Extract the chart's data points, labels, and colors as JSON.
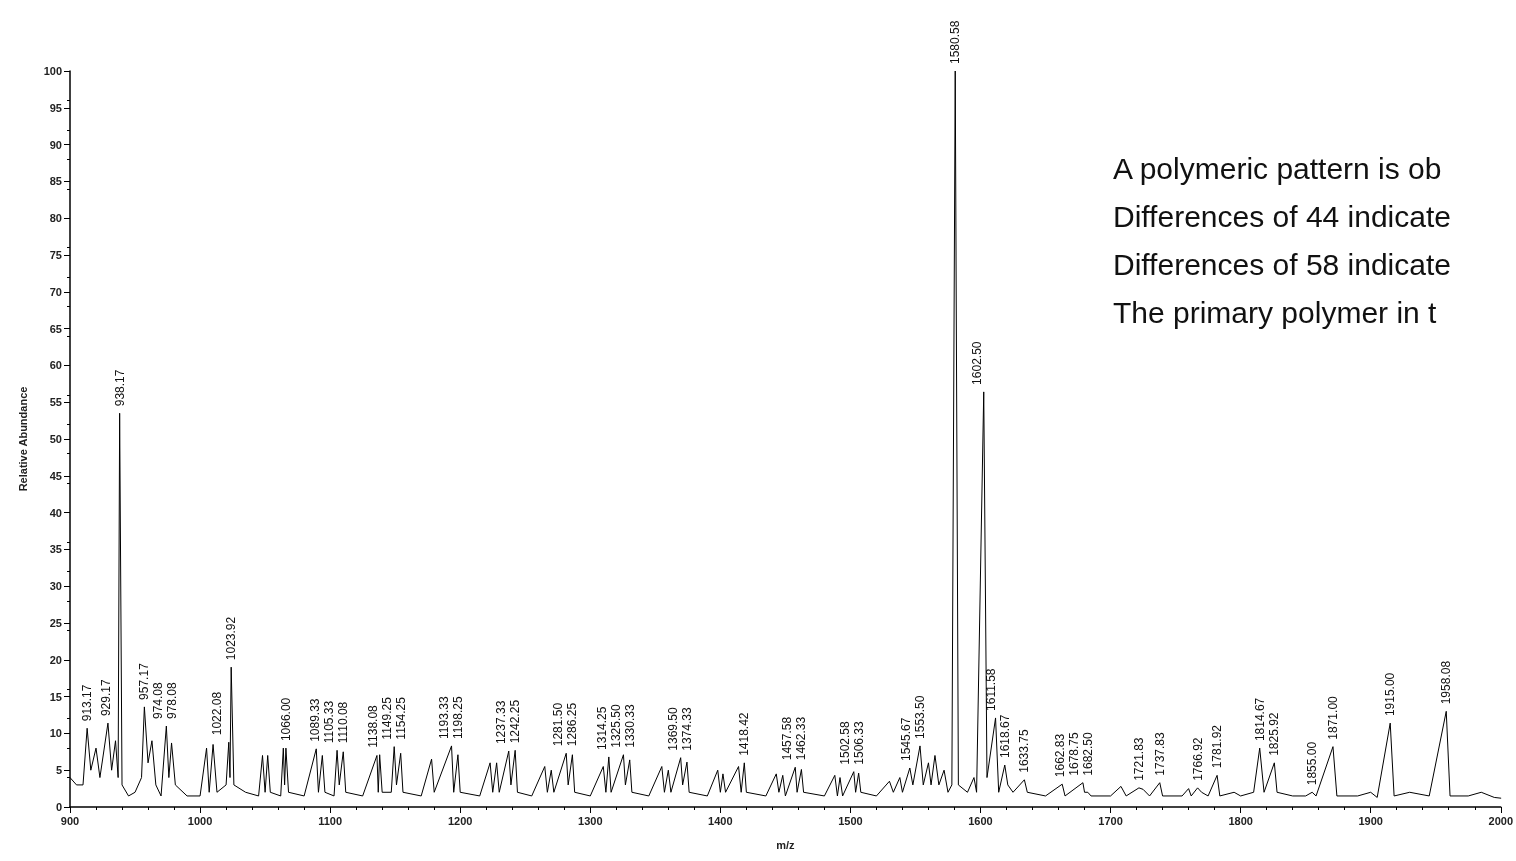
{
  "chart_data": {
    "type": "line",
    "xlabel": "m/z",
    "ylabel": "Relative Abundance",
    "xlim": [
      900,
      2000
    ],
    "xticks": [
      900,
      1000,
      1100,
      1200,
      1300,
      1400,
      1500,
      1600,
      1700,
      1800,
      1900,
      2000
    ],
    "ylim": [
      0,
      100
    ],
    "yticks": [
      0,
      5,
      10,
      15,
      20,
      25,
      30,
      35,
      40,
      45,
      50,
      55,
      60,
      65,
      70,
      75,
      80,
      85,
      90,
      95,
      100
    ],
    "grid": false,
    "marker": "none",
    "line_style": "solid",
    "series": [
      {
        "color": "#000000",
        "x": [
          900,
          905,
          910,
          913.17,
          916,
          920,
          923,
          929.17,
          932,
          935,
          937,
          938.17,
          940,
          945,
          950,
          955,
          957.17,
          960,
          963,
          966,
          970,
          974.08,
          976,
          978.08,
          981,
          990,
          1000,
          1005,
          1007,
          1010,
          1013,
          1020,
          1022.08,
          1023,
          1023.92,
          1026,
          1035,
          1045,
          1048,
          1050,
          1052,
          1054,
          1062,
          1064,
          1065,
          1066.0,
          1068,
          1080,
          1089.33,
          1091,
          1094,
          1096,
          1103,
          1105.33,
          1107,
          1110.08,
          1112,
          1125,
          1136,
          1137,
          1138.08,
          1140,
          1147,
          1149.25,
          1151,
          1154.25,
          1156,
          1170,
          1178,
          1180,
          1193.33,
          1195,
          1198.25,
          1200,
          1215,
          1223,
          1225,
          1228,
          1230,
          1237.33,
          1239,
          1242.25,
          1244,
          1255,
          1265,
          1267,
          1270,
          1272,
          1281.5,
          1283,
          1286.25,
          1288,
          1300,
          1310,
          1312,
          1314.25,
          1316,
          1325.5,
          1327,
          1330.33,
          1332,
          1345,
          1355,
          1357,
          1360,
          1362,
          1369.5,
          1371,
          1374.33,
          1376,
          1390,
          1398,
          1400,
          1402,
          1404,
          1414,
          1416,
          1418.42,
          1420,
          1435,
          1443,
          1445,
          1448,
          1450,
          1457.58,
          1459,
          1462.33,
          1464,
          1480,
          1488,
          1490,
          1492,
          1494,
          1502.58,
          1504,
          1506.33,
          1508,
          1520,
          1530,
          1533,
          1538,
          1540,
          1545.67,
          1548,
          1553.5,
          1556,
          1560,
          1562,
          1565,
          1568,
          1572,
          1575,
          1578,
          1580.58,
          1583,
          1590,
          1595,
          1597,
          1602.5,
          1605,
          1611.58,
          1614,
          1618.67,
          1621,
          1625,
          1633.75,
          1636,
          1650,
          1662.83,
          1665,
          1678.75,
          1680,
          1682.5,
          1685,
          1700,
          1708,
          1712,
          1721.83,
          1725,
          1730,
          1737.83,
          1740,
          1755,
          1760,
          1762,
          1766.92,
          1770,
          1775,
          1781.92,
          1784,
          1795,
          1800,
          1810,
          1814.67,
          1818,
          1825.92,
          1828,
          1840,
          1850,
          1855.0,
          1858,
          1871.0,
          1874,
          1890,
          1900,
          1905,
          1915.0,
          1918,
          1930,
          1945,
          1958.08,
          1961,
          1975,
          1985,
          1995,
          2000
        ],
        "values": [
          4,
          3,
          3,
          10.7,
          5,
          8,
          4,
          11.4,
          5,
          9,
          4,
          53.5,
          3,
          1.5,
          2,
          4,
          13.6,
          6,
          9,
          3,
          1.5,
          11.0,
          4,
          8.7,
          3,
          1.5,
          1.5,
          8,
          2,
          8.5,
          2,
          3,
          8.8,
          4,
          19.0,
          3,
          2,
          1.5,
          7,
          2,
          7,
          2,
          1.5,
          8,
          3,
          8.0,
          2,
          1.5,
          7.9,
          2,
          7,
          2,
          1.5,
          7.7,
          3,
          7.5,
          2,
          1.5,
          7,
          2,
          7.1,
          2,
          2,
          8.2,
          3,
          7.3,
          2,
          1.5,
          6.5,
          2,
          8.3,
          2,
          7.1,
          2,
          1.5,
          6,
          2,
          6,
          2,
          7.6,
          3,
          7.7,
          2,
          1.5,
          5.5,
          2,
          5,
          2,
          7.3,
          3,
          7.1,
          2,
          1.5,
          5.5,
          2,
          6.8,
          2,
          7.1,
          3,
          6.4,
          2,
          1.5,
          5.5,
          2,
          5,
          2,
          6.7,
          3,
          6.1,
          2,
          1.5,
          5,
          2,
          4.5,
          2,
          5.5,
          2,
          6.0,
          2,
          1.5,
          4.5,
          2,
          4.3,
          1.5,
          5.4,
          2,
          5.1,
          2,
          1.5,
          4.3,
          1.5,
          4,
          1.5,
          4.8,
          2,
          4.6,
          2,
          1.5,
          3.5,
          2,
          4,
          2,
          5.3,
          3,
          8.3,
          3,
          6,
          3,
          7,
          3,
          5,
          2,
          3,
          100,
          3,
          2,
          4,
          2,
          56.4,
          4,
          12.1,
          2,
          5.7,
          3,
          2,
          3.7,
          2,
          1.5,
          3.1,
          1.5,
          3.3,
          2,
          2.0,
          1.5,
          1.5,
          2.8,
          1.5,
          2.6,
          2.4,
          1.5,
          3.3,
          1.5,
          1.5,
          2.5,
          1.5,
          2.6,
          2,
          1.5,
          4.3,
          1.5,
          2,
          1.5,
          2,
          8.0,
          2,
          6.0,
          2,
          1.5,
          1.5,
          2.0,
          1.5,
          8.2,
          1.5,
          1.5,
          2,
          1.3,
          11.4,
          1.5,
          2,
          1.5,
          13.0,
          1.5,
          1.5,
          2,
          1.3,
          1.2
        ]
      }
    ],
    "annotations": [
      {
        "text": "913.17",
        "x": 913.17,
        "y": 10.7
      },
      {
        "text": "929.17",
        "x": 929.17,
        "y": 11.4
      },
      {
        "text": "938.17",
        "x": 938.17,
        "y": 53.5
      },
      {
        "text": "957.17",
        "x": 957.17,
        "y": 13.6
      },
      {
        "text": "974.08",
        "x": 974.08,
        "y": 11.0
      },
      {
        "text": "978.08",
        "x": 978.08,
        "y": 8.7
      },
      {
        "text": "1022.08",
        "x": 1022.08,
        "y": 8.8
      },
      {
        "text": "1023.92",
        "x": 1023.92,
        "y": 19.0
      },
      {
        "text": "1066.00",
        "x": 1066.0,
        "y": 8.0
      },
      {
        "text": "1089.33",
        "x": 1089.33,
        "y": 7.9
      },
      {
        "text": "1105.33",
        "x": 1105.33,
        "y": 7.7
      },
      {
        "text": "1110.08",
        "x": 1110.08,
        "y": 7.5
      },
      {
        "text": "1138.08",
        "x": 1138.08,
        "y": 7.1
      },
      {
        "text": "1149.25",
        "x": 1149.25,
        "y": 8.2
      },
      {
        "text": "1154.25",
        "x": 1154.25,
        "y": 7.3
      },
      {
        "text": "1193.33",
        "x": 1193.33,
        "y": 8.3
      },
      {
        "text": "1198.25",
        "x": 1198.25,
        "y": 7.1
      },
      {
        "text": "1237.33",
        "x": 1237.33,
        "y": 7.6
      },
      {
        "text": "1242.25",
        "x": 1242.25,
        "y": 7.7
      },
      {
        "text": "1281.50",
        "x": 1281.5,
        "y": 7.3
      },
      {
        "text": "1286.25",
        "x": 1286.25,
        "y": 7.1
      },
      {
        "text": "1314.25",
        "x": 1314.25,
        "y": 6.8
      },
      {
        "text": "1325.50",
        "x": 1325.5,
        "y": 7.1
      },
      {
        "text": "1330.33",
        "x": 1330.33,
        "y": 6.4
      },
      {
        "text": "1369.50",
        "x": 1369.5,
        "y": 6.7
      },
      {
        "text": "1374.33",
        "x": 1374.33,
        "y": 6.1
      },
      {
        "text": "1418.42",
        "x": 1418.42,
        "y": 6.0
      },
      {
        "text": "1457.58",
        "x": 1457.58,
        "y": 5.4
      },
      {
        "text": "1462.33",
        "x": 1462.33,
        "y": 5.1
      },
      {
        "text": "1502.58",
        "x": 1502.58,
        "y": 4.8
      },
      {
        "text": "1506.33",
        "x": 1506.33,
        "y": 4.6
      },
      {
        "text": "1545.67",
        "x": 1545.67,
        "y": 5.3
      },
      {
        "text": "1553.50",
        "x": 1553.5,
        "y": 8.3
      },
      {
        "text": "1580.58",
        "x": 1580.58,
        "y": 100
      },
      {
        "text": "1602.50",
        "x": 1602.5,
        "y": 56.4
      },
      {
        "text": "1611.58",
        "x": 1611.58,
        "y": 12.1
      },
      {
        "text": "1618.67",
        "x": 1618.67,
        "y": 5.7
      },
      {
        "text": "1633.75",
        "x": 1633.75,
        "y": 3.7
      },
      {
        "text": "1662.83",
        "x": 1662.83,
        "y": 3.1
      },
      {
        "text": "1678.75",
        "x": 1678.75,
        "y": 3.3
      },
      {
        "text": "1682.50",
        "x": 1682.5,
        "y": 2.0
      },
      {
        "text": "1721.83",
        "x": 1721.83,
        "y": 2.6
      },
      {
        "text": "1737.83",
        "x": 1737.83,
        "y": 3.3
      },
      {
        "text": "1766.92",
        "x": 1766.92,
        "y": 2.6
      },
      {
        "text": "1781.92",
        "x": 1781.92,
        "y": 4.3
      },
      {
        "text": "1814.67",
        "x": 1814.67,
        "y": 8.0
      },
      {
        "text": "1825.92",
        "x": 1825.92,
        "y": 6.0
      },
      {
        "text": "1855.00",
        "x": 1855.0,
        "y": 2.0
      },
      {
        "text": "1871.00",
        "x": 1871.0,
        "y": 8.2
      },
      {
        "text": "1915.00",
        "x": 1915.0,
        "y": 11.4
      },
      {
        "text": "1958.08",
        "x": 1958.08,
        "y": 13.0
      },
      "A polymeric pattern is ob",
      "Differences of 44 indicate",
      "Differences of 58 indicate",
      "The primary polymer in t"
    ]
  }
}
